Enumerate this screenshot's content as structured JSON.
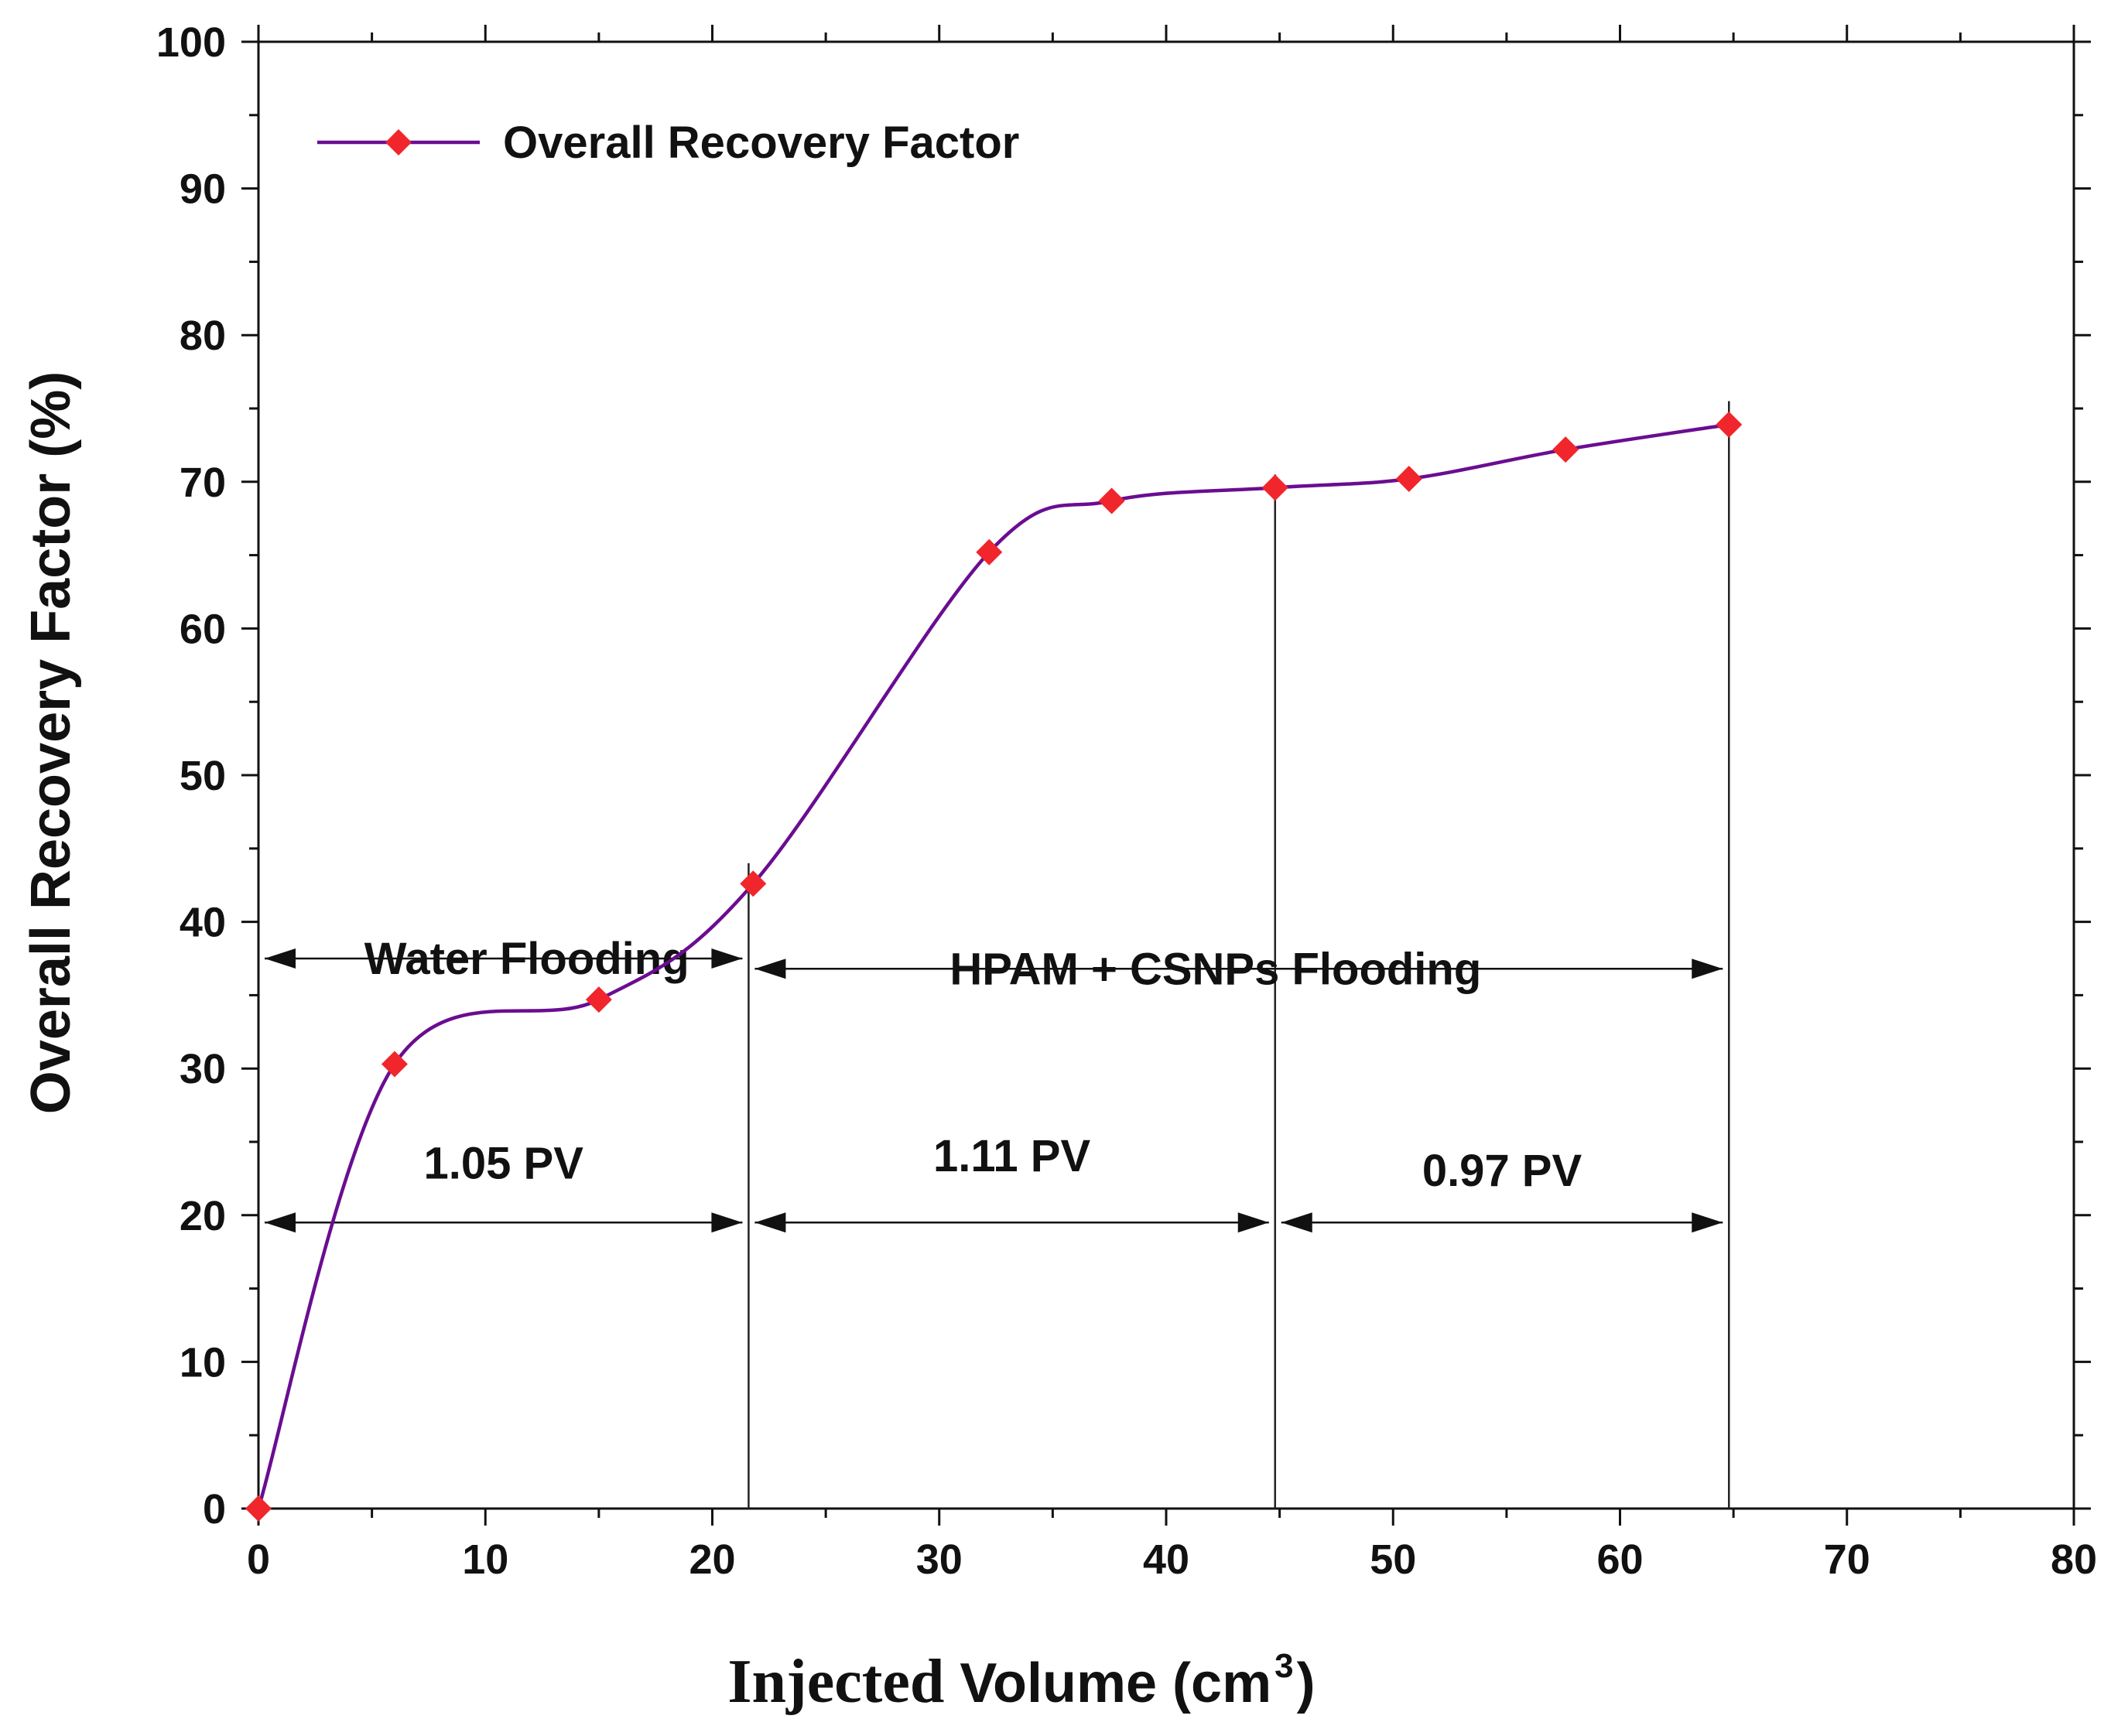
{
  "chart_data": {
    "type": "line",
    "title": "",
    "xlabel_part1": "Injected",
    "xlabel_part2": "Volume (cm",
    "xlabel_sup": "3",
    "xlabel_close": ")",
    "ylabel": "Overall Recovery Factor (%)",
    "xlim": [
      0,
      80
    ],
    "ylim": [
      0,
      100
    ],
    "x_ticks": [
      0,
      10,
      20,
      30,
      40,
      50,
      60,
      70,
      80
    ],
    "y_ticks": [
      0,
      10,
      20,
      30,
      40,
      50,
      60,
      70,
      80,
      90,
      100
    ],
    "x_tick_labels": [
      "0",
      "10",
      "20",
      "30",
      "40",
      "50",
      "60",
      "70",
      "80"
    ],
    "y_tick_labels": [
      "0",
      "10",
      "20",
      "30",
      "40",
      "50",
      "60",
      "70",
      "80",
      "90",
      "100"
    ],
    "series": [
      {
        "name": "Overall Recovery Factor",
        "line_color": "#6a0d91",
        "marker_color": "#f0262c",
        "x": [
          0,
          6,
          15,
          21.8,
          32.2,
          37.6,
          44.8,
          50.7,
          57.6,
          64.8
        ],
        "y": [
          0,
          30.3,
          34.7,
          42.6,
          65.2,
          68.7,
          69.6,
          70.2,
          72.2,
          73.9
        ]
      }
    ],
    "legend": {
      "label": "Overall Recovery Factor",
      "placement": "top-left"
    },
    "phase_boundaries_x": [
      21.6,
      44.8,
      64.8
    ],
    "annotations": {
      "water_flooding": {
        "label": "Water Flooding",
        "x_start": 0,
        "x_end": 21.6,
        "y": 37.5
      },
      "hpam_flooding": {
        "label": "HPAM + CSNPs Flooding",
        "x_start": 21.6,
        "x_end": 64.8,
        "y": 36.8
      },
      "pv_segments": [
        {
          "label": "1.05 PV",
          "x_start": 0,
          "x_end": 21.6,
          "y": 19.5,
          "label_y": 22.5
        },
        {
          "label": "1.11 PV",
          "x_start": 21.6,
          "x_end": 44.8,
          "y": 19.5,
          "label_y": 23.0
        },
        {
          "label": "0.97 PV",
          "x_start": 44.8,
          "x_end": 64.8,
          "y": 19.5,
          "label_y": 22.0
        }
      ]
    }
  },
  "colors": {
    "axis": "#111111",
    "line": "#6a0d91",
    "marker": "#f0262c",
    "guide": "#222222"
  }
}
